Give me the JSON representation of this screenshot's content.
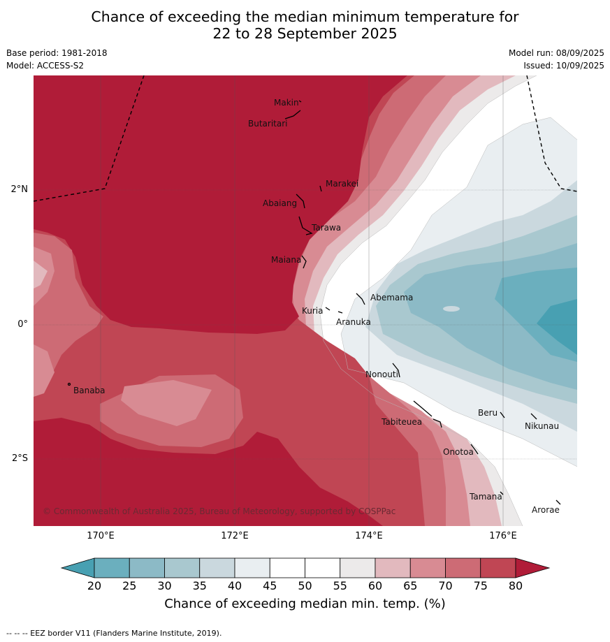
{
  "title": {
    "line1": "Chance of exceeding the median minimum temperature for",
    "line2": "22 to 28 September 2025"
  },
  "meta": {
    "base_period": "Base period: 1981-2018",
    "model": "Model: ACCESS-S2",
    "model_run": "Model run: 08/09/2025",
    "issued": "Issued: 10/09/2025"
  },
  "map": {
    "lat_labels": [
      "2°N",
      "0°",
      "2°S"
    ],
    "lon_labels": [
      "170°E",
      "172°E",
      "174°E",
      "176°E"
    ],
    "places": [
      {
        "name": "Makin",
        "lon": 173.03,
        "lat": 3.38
      },
      {
        "name": "Butaritari",
        "lon": 172.74,
        "lat": 3.07
      },
      {
        "name": "Marakei",
        "lon": 173.35,
        "lat": 2.03
      },
      {
        "name": "Abaiang",
        "lon": 172.75,
        "lat": 1.84
      },
      {
        "name": "Tarawa",
        "lon": 173.0,
        "lat": 1.45
      },
      {
        "name": "Maiana",
        "lon": 173.0,
        "lat": 0.93
      },
      {
        "name": "Abemama",
        "lon": 173.87,
        "lat": 0.4
      },
      {
        "name": "Kuria",
        "lon": 173.43,
        "lat": 0.22
      },
      {
        "name": "Aranuka",
        "lon": 173.6,
        "lat": 0.17
      },
      {
        "name": "Nonouti",
        "lon": 174.43,
        "lat": -0.65
      },
      {
        "name": "Tabiteuea",
        "lon": 174.85,
        "lat": -1.28
      },
      {
        "name": "Beru",
        "lon": 176.0,
        "lat": -1.32
      },
      {
        "name": "Nikunau",
        "lon": 176.47,
        "lat": -1.37
      },
      {
        "name": "Onotoa",
        "lon": 175.57,
        "lat": -1.8
      },
      {
        "name": "Tamana",
        "lon": 175.98,
        "lat": -2.5
      },
      {
        "name": "Arorae",
        "lon": 176.82,
        "lat": -2.64
      },
      {
        "name": "Banaba",
        "lon": 169.54,
        "lat": -0.87
      }
    ],
    "copyright": "© Commonwealth of Australia 2025, Bureau of Meteorology, supported by COSPPac"
  },
  "legend": {
    "ticks": [
      "20",
      "25",
      "30",
      "35",
      "40",
      "45",
      "50",
      "55",
      "60",
      "65",
      "70",
      "75",
      "80"
    ],
    "label": "Chance of exceeding median min. temp. (%)",
    "colors": [
      "#48a0b2",
      "#6bafbe",
      "#8cbac6",
      "#a9c8cf",
      "#cad8de",
      "#e9eef1",
      "#ffffff",
      "#ffffff",
      "#eceaea",
      "#e2b9be",
      "#d88b93",
      "#cd6b75",
      "#c04654",
      "#b01c38"
    ]
  },
  "footer": "--  --  -- EEZ border V11 (Flanders Marine Institute, 2019)."
}
